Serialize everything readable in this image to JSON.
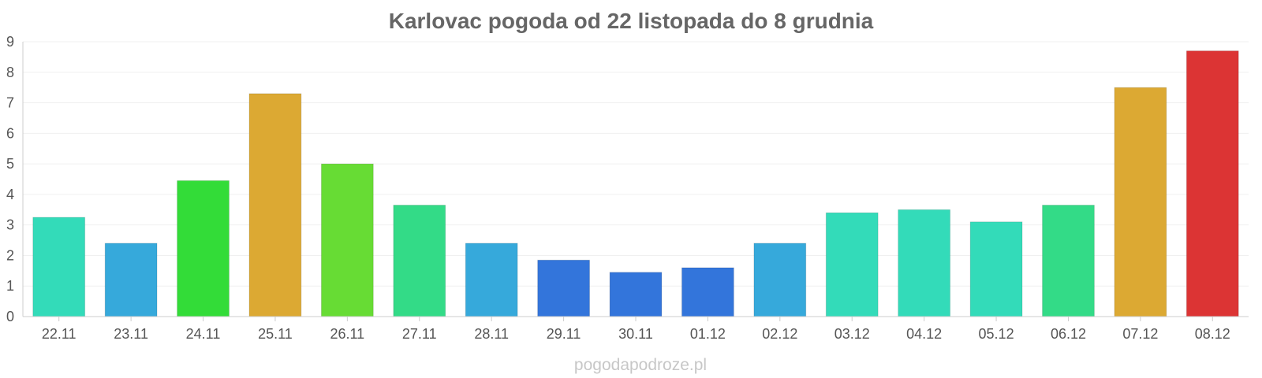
{
  "chart_data": {
    "type": "bar",
    "title": "Karlovac pogoda od 22 listopada do 8 grudnia",
    "xlabel": "",
    "ylabel": "",
    "categories": [
      "22.11",
      "23.11",
      "24.11",
      "25.11",
      "26.11",
      "27.11",
      "28.11",
      "29.11",
      "30.11",
      "01.12",
      "02.12",
      "03.12",
      "04.12",
      "05.12",
      "06.12",
      "07.12",
      "08.12"
    ],
    "values": [
      3.25,
      2.4,
      4.45,
      7.3,
      5.0,
      3.65,
      2.4,
      1.85,
      1.45,
      1.6,
      2.4,
      3.4,
      3.5,
      3.1,
      3.65,
      7.5,
      8.7
    ],
    "colors": [
      "#33dbb9",
      "#36a9db",
      "#33dc38",
      "#dca933",
      "#67dc34",
      "#33db87",
      "#36a9db",
      "#3375db",
      "#3375db",
      "#3375db",
      "#36a9db",
      "#33dbb9",
      "#33dbb9",
      "#33dbb9",
      "#33db87",
      "#dca933",
      "#dc3434"
    ],
    "ylim": [
      0,
      9
    ],
    "yticks": [
      "0",
      "1",
      "2",
      "3",
      "4",
      "5",
      "6",
      "7",
      "8",
      "9"
    ],
    "grid": true,
    "legend": "none"
  },
  "watermark": "pogodapodroze.pl"
}
